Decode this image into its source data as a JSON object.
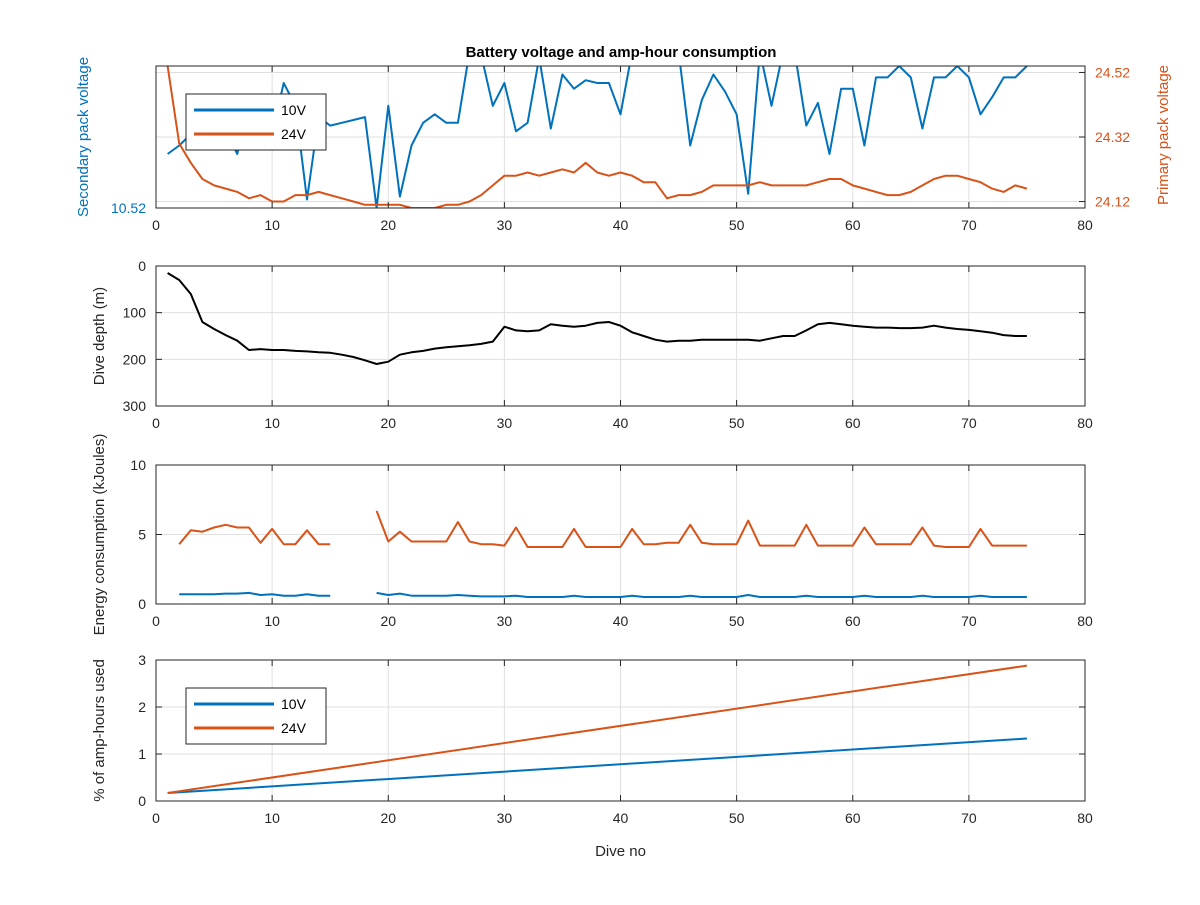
{
  "figure": {
    "title": "Battery voltage and amp-hour consumption"
  },
  "colors": {
    "blue": "#0072bd",
    "orange": "#d95319",
    "black": "#000000",
    "grid": "#dfdfdf",
    "axis": "#262626"
  },
  "chart_data": [
    {
      "type": "line",
      "name": "voltage",
      "xlabel": "",
      "ylabel": "Secondary pack voltage",
      "ylabel_right": "Primary pack voltage",
      "xlim": [
        0,
        80
      ],
      "x_ticks": [
        0,
        10,
        20,
        30,
        40,
        50,
        60,
        70,
        80
      ],
      "ylim": [
        10.52,
        10.57
      ],
      "y_ticks": [
        10.52
      ],
      "y_tick_labels": [
        "10.52"
      ],
      "ylim_right": [
        24.1,
        24.54
      ],
      "y_ticks_right": [
        24.12,
        24.32,
        24.52
      ],
      "y_tick_labels_right": [
        "24.12",
        "24.32",
        "24.52"
      ],
      "grid": true,
      "legend": {
        "placement": "top-left",
        "entries": [
          "10V",
          "24V"
        ]
      },
      "series": [
        {
          "name": "10V",
          "axis": "left",
          "color": "blue",
          "x": [
            1,
            2,
            3,
            4,
            5,
            6,
            7,
            8,
            9,
            10,
            11,
            12,
            13,
            14,
            15,
            16,
            17,
            18,
            19,
            20,
            21,
            22,
            23,
            24,
            25,
            26,
            27,
            28,
            29,
            30,
            31,
            32,
            33,
            34,
            35,
            36,
            37,
            38,
            39,
            40,
            41,
            42,
            43,
            44,
            45,
            46,
            47,
            48,
            49,
            50,
            51,
            52,
            53,
            54,
            55,
            56,
            57,
            58,
            59,
            60,
            61,
            62,
            63,
            64,
            65,
            66,
            67,
            68,
            69,
            70,
            71,
            72,
            73,
            74,
            75
          ],
          "y": [
            10.539,
            10.542,
            10.546,
            10.545,
            10.552,
            10.547,
            10.539,
            10.559,
            10.556,
            10.546,
            10.564,
            10.556,
            10.523,
            10.552,
            10.549,
            10.55,
            10.551,
            10.552,
            10.52,
            10.556,
            10.524,
            10.542,
            10.55,
            10.553,
            10.55,
            10.55,
            10.575,
            10.574,
            10.556,
            10.564,
            10.547,
            10.55,
            10.573,
            10.548,
            10.567,
            10.562,
            10.565,
            10.564,
            10.564,
            10.553,
            10.575,
            10.572,
            10.571,
            10.575,
            10.575,
            10.542,
            10.558,
            10.567,
            10.561,
            10.553,
            10.525,
            10.575,
            10.556,
            10.575,
            10.575,
            10.549,
            10.557,
            10.539,
            10.562,
            10.562,
            10.542,
            10.566,
            10.566,
            10.57,
            10.566,
            10.548,
            10.566,
            10.566,
            10.57,
            10.566,
            10.553,
            10.559,
            10.566,
            10.566,
            10.57
          ]
        },
        {
          "name": "24V",
          "axis": "right",
          "color": "orange",
          "x": [
            1,
            2,
            3,
            4,
            5,
            6,
            7,
            8,
            9,
            10,
            11,
            12,
            13,
            14,
            15,
            16,
            17,
            18,
            19,
            20,
            21,
            22,
            23,
            24,
            25,
            26,
            27,
            28,
            29,
            30,
            31,
            32,
            33,
            34,
            35,
            36,
            37,
            38,
            39,
            40,
            41,
            42,
            43,
            44,
            45,
            46,
            47,
            48,
            49,
            50,
            51,
            52,
            53,
            54,
            55,
            56,
            57,
            58,
            59,
            60,
            61,
            62,
            63,
            64,
            65,
            66,
            67,
            68,
            69,
            70,
            71,
            72,
            73,
            74,
            75
          ],
          "y": [
            24.54,
            24.3,
            24.24,
            24.19,
            24.17,
            24.16,
            24.15,
            24.13,
            24.14,
            24.12,
            24.12,
            24.14,
            24.14,
            24.15,
            24.14,
            24.13,
            24.12,
            24.11,
            24.11,
            24.11,
            24.11,
            24.1,
            24.1,
            24.1,
            24.11,
            24.11,
            24.12,
            24.14,
            24.17,
            24.2,
            24.2,
            24.21,
            24.2,
            24.21,
            24.22,
            24.21,
            24.24,
            24.21,
            24.2,
            24.21,
            24.2,
            24.18,
            24.18,
            24.13,
            24.14,
            24.14,
            24.15,
            24.17,
            24.17,
            24.17,
            24.17,
            24.18,
            24.17,
            24.17,
            24.17,
            24.17,
            24.18,
            24.19,
            24.19,
            24.17,
            24.16,
            24.15,
            24.14,
            24.14,
            24.15,
            24.17,
            24.19,
            24.2,
            24.2,
            24.19,
            24.18,
            24.16,
            24.15,
            24.17,
            24.16
          ]
        }
      ]
    },
    {
      "type": "line",
      "name": "depth",
      "xlabel": "",
      "ylabel": "Dive depth (m)",
      "xlim": [
        0,
        80
      ],
      "x_ticks": [
        0,
        10,
        20,
        30,
        40,
        50,
        60,
        70,
        80
      ],
      "ylim": [
        0,
        300
      ],
      "y_reversed": true,
      "y_ticks": [
        0,
        100,
        200,
        300
      ],
      "y_tick_labels": [
        "0",
        "100",
        "200",
        "300"
      ],
      "grid": true,
      "series": [
        {
          "color": "black",
          "x": [
            1,
            2,
            3,
            4,
            5,
            6,
            7,
            8,
            9,
            10,
            11,
            12,
            13,
            14,
            15,
            16,
            17,
            18,
            19,
            20,
            21,
            22,
            23,
            24,
            25,
            26,
            27,
            28,
            29,
            30,
            31,
            32,
            33,
            34,
            35,
            36,
            37,
            38,
            39,
            40,
            41,
            42,
            43,
            44,
            45,
            46,
            47,
            48,
            49,
            50,
            51,
            52,
            53,
            54,
            55,
            56,
            57,
            58,
            59,
            60,
            61,
            62,
            63,
            64,
            65,
            66,
            67,
            68,
            69,
            70,
            71,
            72,
            73,
            74,
            75
          ],
          "y": [
            15,
            30,
            60,
            120,
            135,
            148,
            160,
            180,
            178,
            180,
            180,
            182,
            183,
            185,
            186,
            190,
            195,
            202,
            210,
            205,
            190,
            185,
            182,
            177,
            174,
            172,
            170,
            167,
            162,
            130,
            138,
            140,
            138,
            125,
            128,
            130,
            128,
            122,
            120,
            128,
            142,
            150,
            158,
            162,
            160,
            160,
            158,
            158,
            158,
            158,
            158,
            160,
            155,
            150,
            150,
            138,
            125,
            122,
            125,
            128,
            130,
            132,
            132,
            133,
            133,
            132,
            128,
            132,
            135,
            137,
            140,
            143,
            148,
            150,
            150
          ]
        }
      ]
    },
    {
      "type": "line",
      "name": "energy",
      "xlabel": "",
      "ylabel": "Energy consumption (kJoules)",
      "xlim": [
        0,
        80
      ],
      "x_ticks": [
        0,
        10,
        20,
        30,
        40,
        50,
        60,
        70,
        80
      ],
      "ylim": [
        0,
        10
      ],
      "y_ticks": [
        0,
        5,
        10
      ],
      "y_tick_labels": [
        "0",
        "5",
        "10"
      ],
      "grid": true,
      "series": [
        {
          "name": "10V",
          "color": "orange",
          "segments": [
            {
              "x": [
                2,
                3,
                4,
                5,
                6,
                7,
                8,
                9,
                10,
                11,
                12,
                13,
                14,
                15
              ],
              "y": [
                4.3,
                5.3,
                5.2,
                5.5,
                5.7,
                5.5,
                5.5,
                4.4,
                5.4,
                4.3,
                4.3,
                5.3,
                4.3,
                4.3
              ]
            },
            {
              "x": [
                19,
                20,
                21,
                22,
                23,
                24,
                25,
                26,
                27,
                28,
                29,
                30,
                31,
                32,
                33,
                34,
                35,
                36,
                37,
                38,
                39,
                40,
                41,
                42,
                43,
                44,
                45,
                46,
                47,
                48,
                49,
                50,
                51,
                52,
                53,
                54,
                55,
                56,
                57,
                58,
                59,
                60,
                61,
                62,
                63,
                64,
                65,
                66,
                67,
                68,
                69,
                70,
                71,
                72,
                73,
                74,
                75
              ],
              "y": [
                6.7,
                4.5,
                5.2,
                4.5,
                4.5,
                4.5,
                4.5,
                5.9,
                4.5,
                4.3,
                4.3,
                4.2,
                5.5,
                4.1,
                4.1,
                4.1,
                4.1,
                5.4,
                4.1,
                4.1,
                4.1,
                4.1,
                5.4,
                4.3,
                4.3,
                4.4,
                4.4,
                5.7,
                4.4,
                4.3,
                4.3,
                4.3,
                6.0,
                4.2,
                4.2,
                4.2,
                4.2,
                5.7,
                4.2,
                4.2,
                4.2,
                4.2,
                5.5,
                4.3,
                4.3,
                4.3,
                4.3,
                5.5,
                4.2,
                4.1,
                4.1,
                4.1,
                5.4,
                4.2,
                4.2,
                4.2,
                4.2
              ]
            }
          ]
        },
        {
          "name": "24V",
          "color": "blue",
          "segments": [
            {
              "x": [
                2,
                3,
                4,
                5,
                6,
                7,
                8,
                9,
                10,
                11,
                12,
                13,
                14,
                15
              ],
              "y": [
                0.7,
                0.7,
                0.7,
                0.7,
                0.75,
                0.75,
                0.8,
                0.65,
                0.7,
                0.6,
                0.6,
                0.7,
                0.6,
                0.6
              ]
            },
            {
              "x": [
                19,
                20,
                21,
                22,
                23,
                24,
                25,
                26,
                27,
                28,
                29,
                30,
                31,
                32,
                33,
                34,
                35,
                36,
                37,
                38,
                39,
                40,
                41,
                42,
                43,
                44,
                45,
                46,
                47,
                48,
                49,
                50,
                51,
                52,
                53,
                54,
                55,
                56,
                57,
                58,
                59,
                60,
                61,
                62,
                63,
                64,
                65,
                66,
                67,
                68,
                69,
                70,
                71,
                72,
                73,
                74,
                75
              ],
              "y": [
                0.8,
                0.65,
                0.75,
                0.6,
                0.6,
                0.6,
                0.6,
                0.65,
                0.6,
                0.55,
                0.55,
                0.55,
                0.6,
                0.5,
                0.5,
                0.5,
                0.5,
                0.6,
                0.5,
                0.5,
                0.5,
                0.5,
                0.6,
                0.5,
                0.5,
                0.5,
                0.5,
                0.6,
                0.5,
                0.5,
                0.5,
                0.5,
                0.65,
                0.5,
                0.5,
                0.5,
                0.5,
                0.6,
                0.5,
                0.5,
                0.5,
                0.5,
                0.6,
                0.5,
                0.5,
                0.5,
                0.5,
                0.6,
                0.5,
                0.5,
                0.5,
                0.5,
                0.6,
                0.5,
                0.5,
                0.5,
                0.5
              ]
            }
          ]
        }
      ]
    },
    {
      "type": "line",
      "name": "amphours",
      "xlabel": "Dive no",
      "ylabel": "% of amp-hours used",
      "xlim": [
        0,
        80
      ],
      "x_ticks": [
        0,
        10,
        20,
        30,
        40,
        50,
        60,
        70,
        80
      ],
      "ylim": [
        0,
        3
      ],
      "y_ticks": [
        0,
        1,
        2,
        3
      ],
      "y_tick_labels": [
        "0",
        "1",
        "2",
        "3"
      ],
      "grid": true,
      "legend": {
        "placement": "top-left",
        "entries": [
          "10V",
          "24V"
        ]
      },
      "series": [
        {
          "name": "10V",
          "color": "blue",
          "x": [
            1,
            75
          ],
          "y": [
            0.17,
            1.33
          ]
        },
        {
          "name": "24V",
          "color": "orange",
          "x": [
            1,
            75
          ],
          "y": [
            0.17,
            2.88
          ]
        }
      ]
    }
  ]
}
